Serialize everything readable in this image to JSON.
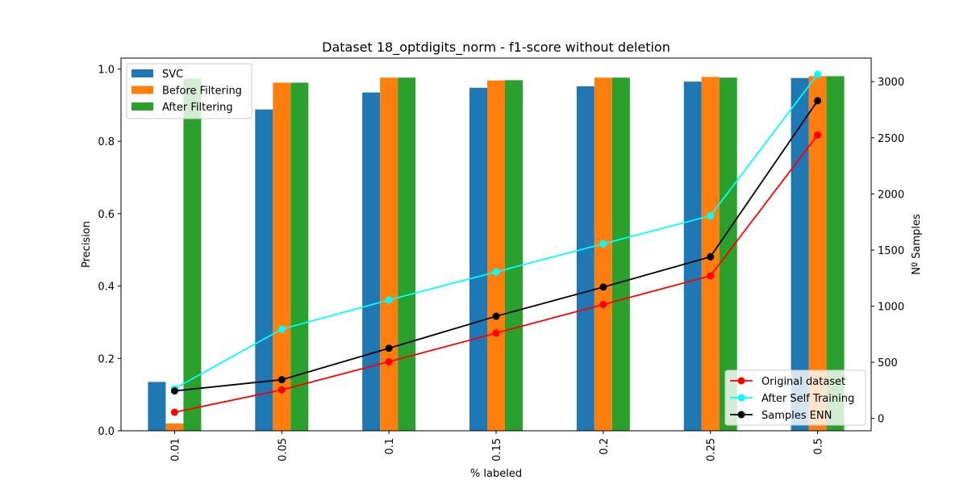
{
  "chart_data": {
    "type": "bar",
    "title": "Dataset 18_optdigits_norm - f1-score without deletion",
    "xlabel": "% labeled",
    "ylabel": "Precision",
    "y2label": "Nº Samples",
    "categories": [
      "0.01",
      "0.05",
      "0.1",
      "0.15",
      "0.2",
      "0.25",
      "0.5"
    ],
    "ylim": [
      0,
      1.03
    ],
    "y2lim": [
      -110,
      3210
    ],
    "yticks": [
      "0.0",
      "0.2",
      "0.4",
      "0.6",
      "0.8",
      "1.0"
    ],
    "y2ticks": [
      "0",
      "500",
      "1000",
      "1500",
      "2000",
      "2500",
      "3000"
    ],
    "bar_series": [
      {
        "name": "SVC",
        "color": "#1f77b4",
        "values": [
          0.135,
          0.888,
          0.935,
          0.948,
          0.952,
          0.965,
          0.975
        ]
      },
      {
        "name": "Before Filtering",
        "color": "#ff7f0e",
        "values": [
          0.02,
          0.962,
          0.976,
          0.968,
          0.976,
          0.978,
          0.98
        ]
      },
      {
        "name": "After Filtering",
        "color": "#2ca02c",
        "values": [
          0.973,
          0.962,
          0.976,
          0.969,
          0.976,
          0.976,
          0.98
        ]
      }
    ],
    "line_series": [
      {
        "name": "Original dataset",
        "color": "#ff0000",
        "values": [
          55,
          255,
          505,
          760,
          1015,
          1270,
          2525
        ]
      },
      {
        "name": "After Self Training",
        "color": "#00ffff",
        "values": [
          265,
          795,
          1055,
          1305,
          1555,
          1805,
          3065
        ]
      },
      {
        "name": "Samples ENN",
        "color": "#000000",
        "values": [
          245,
          345,
          625,
          910,
          1170,
          1440,
          2830
        ]
      }
    ],
    "bar_legend_position": "upper-left",
    "line_legend_position": "lower-right",
    "grid": false
  }
}
